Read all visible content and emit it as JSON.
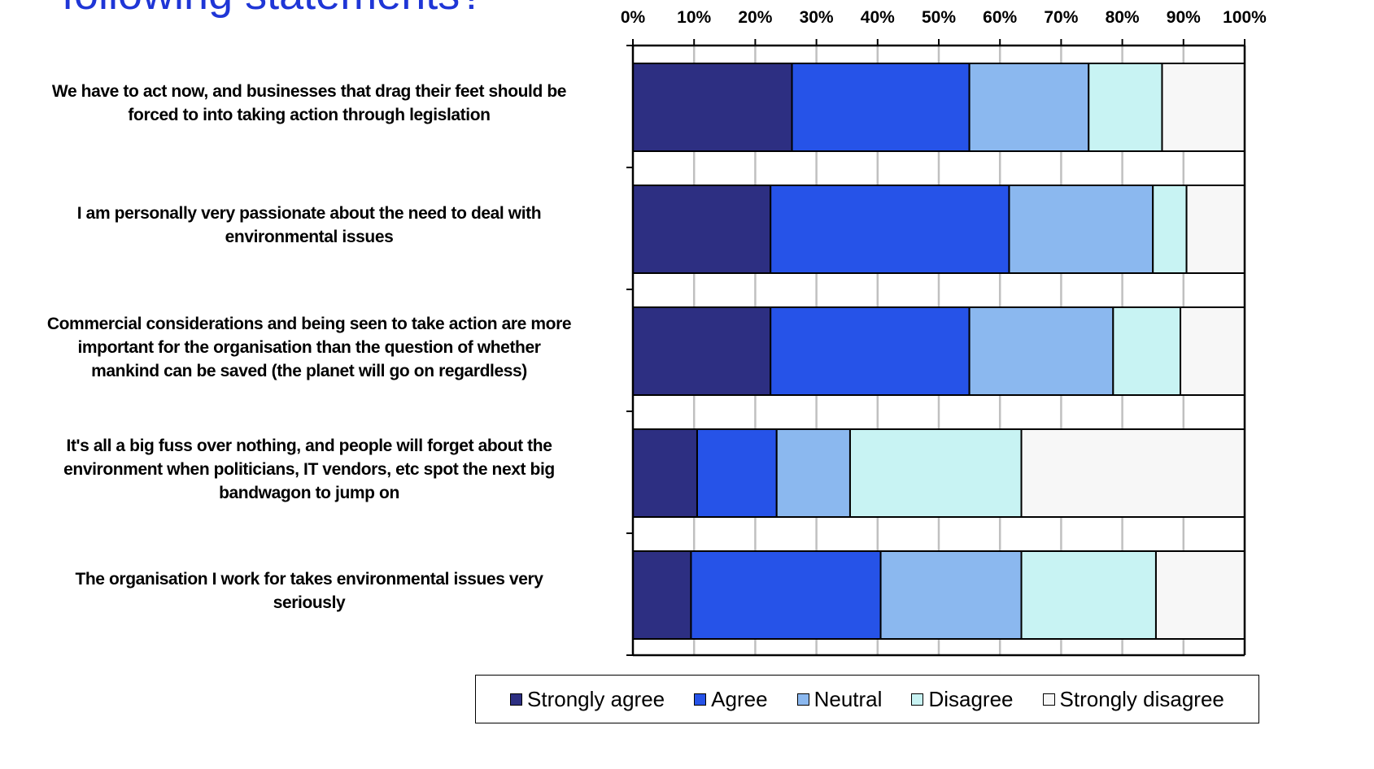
{
  "title": "following statements?",
  "legend": [
    {
      "name": "Strongly agree",
      "color": "#2d2f82"
    },
    {
      "name": "Agree",
      "color": "#2653e8"
    },
    {
      "name": "Neutral",
      "color": "#8bb8ef"
    },
    {
      "name": "Disagree",
      "color": "#c8f3f3"
    },
    {
      "name": "Strongly disagree",
      "color": "#f7f7f7"
    }
  ],
  "chart_data": {
    "type": "bar",
    "orientation": "horizontal",
    "stacked": true,
    "title": "following statements?",
    "categories": [
      "We have to act now, and businesses that drag their feet should be forced to into taking action through legislation",
      "I am personally very passionate about the need to deal with environmental issues",
      "Commercial considerations and being seen to take action are more important for the organisation than the question of whether mankind can be saved (the planet will go on regardless)",
      "It's all a big fuss over nothing, and people will forget about the environment when politicians, IT vendors, etc spot the next big bandwagon to jump  on",
      "The organisation I work for takes environmental issues very seriously"
    ],
    "category_lines": [
      [
        "We have to act now, and businesses that drag their feet should be",
        "forced to into taking action through legislation"
      ],
      [
        "I am personally very passionate about the need to deal with",
        "environmental issues"
      ],
      [
        "Commercial considerations and being seen to take action are more",
        "important for the organisation than the question of whether",
        "mankind can be saved (the planet will go on regardless)"
      ],
      [
        "It's all a big fuss over nothing, and people will forget about the",
        "environment when politicians, IT vendors, etc spot the next big",
        "bandwagon to jump  on"
      ],
      [
        "The organisation I work for takes environmental issues very",
        "seriously"
      ]
    ],
    "series": [
      {
        "name": "Strongly agree",
        "values": [
          26,
          22.5,
          22.5,
          10.5,
          9.5
        ]
      },
      {
        "name": "Agree",
        "values": [
          29,
          39,
          32.5,
          13,
          31
        ]
      },
      {
        "name": "Neutral",
        "values": [
          19.5,
          23.5,
          23.5,
          12,
          23
        ]
      },
      {
        "name": "Disagree",
        "values": [
          12,
          5.5,
          11,
          28,
          22
        ]
      },
      {
        "name": "Strongly disagree",
        "values": [
          13.5,
          9.5,
          10.5,
          36.5,
          14.5
        ]
      }
    ],
    "xlim": [
      0,
      100
    ],
    "x_ticks": [
      "0%",
      "10%",
      "20%",
      "30%",
      "40%",
      "50%",
      "60%",
      "70%",
      "80%",
      "90%",
      "100%"
    ],
    "grid": true,
    "axis_position": "top",
    "legend_position": "bottom"
  }
}
